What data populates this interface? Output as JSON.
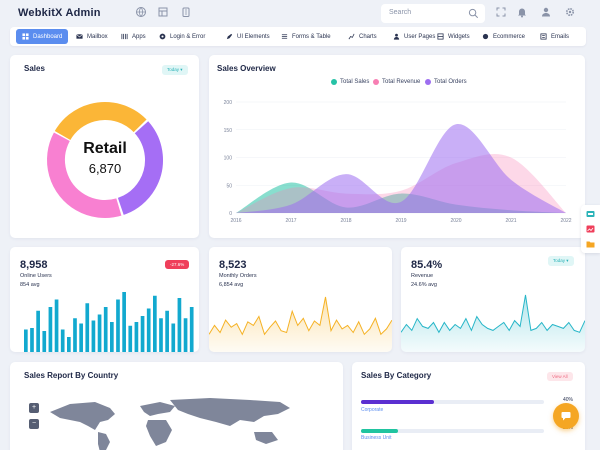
{
  "app": {
    "title": "WebkitX Admin"
  },
  "topbar": {
    "icons": [
      "globe-icon",
      "layout-icon",
      "clipboard-icon"
    ],
    "right_icons": [
      "fullscreen-icon",
      "bell-icon",
      "user-icon",
      "settings-icon"
    ],
    "search_placeholder": "Search"
  },
  "nav": {
    "items": [
      {
        "label": "Dashboard",
        "icon": "dashboard-icon",
        "active": true
      },
      {
        "label": "Mailbox",
        "icon": "mail-icon"
      },
      {
        "label": "Apps",
        "icon": "apps-icon"
      },
      {
        "label": "Login & Error",
        "icon": "login-icon"
      },
      {
        "label": "UI Elements",
        "icon": "edit-icon"
      },
      {
        "label": "Forms & Table",
        "icon": "forms-icon"
      },
      {
        "label": "Charts",
        "icon": "charts-icon"
      },
      {
        "label": "User Pages",
        "icon": "user-pages-icon"
      },
      {
        "label": "Widgets",
        "icon": "widgets-icon"
      },
      {
        "label": "Ecommerce",
        "icon": "ecommerce-icon"
      },
      {
        "label": "Emails",
        "icon": "emails-icon"
      }
    ]
  },
  "sales": {
    "title": "Sales",
    "badge": "Today ▾",
    "center_label": "Retail",
    "center_value": "6,870",
    "segments": [
      {
        "value": 30,
        "color": "#fbb637"
      },
      {
        "value": 32,
        "color": "#a56ef5"
      },
      {
        "value": 38,
        "color": "#f880d1"
      }
    ]
  },
  "overview": {
    "title": "Sales Overview",
    "legend": [
      {
        "label": "Total Sales",
        "color": "#26c2a6"
      },
      {
        "label": "Total Revenue",
        "color": "#f77fb3"
      },
      {
        "label": "Total Orders",
        "color": "#9d6ef0"
      }
    ],
    "chart_data": {
      "type": "area",
      "x": [
        "2016",
        "2017",
        "2018",
        "2019",
        "2020",
        "2021",
        "2022"
      ],
      "ylim": [
        0,
        200
      ],
      "yticks": [
        "200",
        "150",
        "100",
        "50",
        "0"
      ],
      "series": [
        {
          "name": "Total Sales",
          "color": "#26c2a6",
          "values": [
            0,
            55,
            10,
            35,
            15,
            5,
            0
          ]
        },
        {
          "name": "Total Revenue",
          "color": "#f77fb3",
          "values": [
            0,
            45,
            35,
            40,
            90,
            100,
            0
          ]
        },
        {
          "name": "Total Orders",
          "color": "#9d6ef0",
          "values": [
            0,
            15,
            70,
            20,
            160,
            60,
            0
          ]
        }
      ]
    }
  },
  "stats": [
    {
      "value": "8,958",
      "label": "Online Users",
      "avg": "854 avg",
      "badge": "-27.6%",
      "badge_type": "red",
      "chart_data": {
        "type": "bar",
        "color": "#12a9cf",
        "values": [
          30,
          32,
          55,
          28,
          60,
          70,
          30,
          20,
          45,
          38,
          65,
          42,
          50,
          60,
          40,
          70,
          80,
          35,
          40,
          48,
          58,
          75,
          45,
          55,
          38,
          72,
          45,
          60
        ]
      }
    },
    {
      "value": "8,523",
      "label": "Monthly Orders",
      "avg": "6,854 avg",
      "badge": "",
      "badge_type": "",
      "chart_data": {
        "type": "area",
        "color": "#f5b225",
        "values": [
          20,
          30,
          22,
          36,
          28,
          32,
          20,
          34,
          30,
          40,
          20,
          28,
          35,
          24,
          22,
          46,
          30,
          38,
          24,
          35,
          30,
          62,
          24,
          36,
          26,
          30,
          22,
          34,
          20,
          26,
          38,
          20,
          26,
          36
        ]
      }
    },
    {
      "value": "85.4%",
      "label": "Revenue",
      "avg": "24.6% avg",
      "badge": "Today ▾",
      "badge_type": "teal",
      "chart_data": {
        "type": "area",
        "color": "#27b6c8",
        "values": [
          20,
          28,
          22,
          34,
          26,
          24,
          30,
          20,
          30,
          22,
          28,
          24,
          34,
          22,
          36,
          28,
          24,
          22,
          26,
          30,
          22,
          32,
          26,
          58,
          22,
          24,
          30,
          22,
          28,
          26,
          24,
          30,
          22,
          20,
          32
        ]
      }
    }
  ],
  "country": {
    "title": "Sales Report By Country",
    "zoom_in": "+",
    "zoom_out": "−"
  },
  "category": {
    "title": "Sales By Category",
    "view_all": "View All",
    "items": [
      {
        "label": "Corporate",
        "percent": "40%",
        "fraction": 0.4,
        "color": "#5b2fd1"
      },
      {
        "label": "Business Unit",
        "percent": "20%",
        "fraction": 0.2,
        "color": "#20c4a0"
      }
    ]
  }
}
